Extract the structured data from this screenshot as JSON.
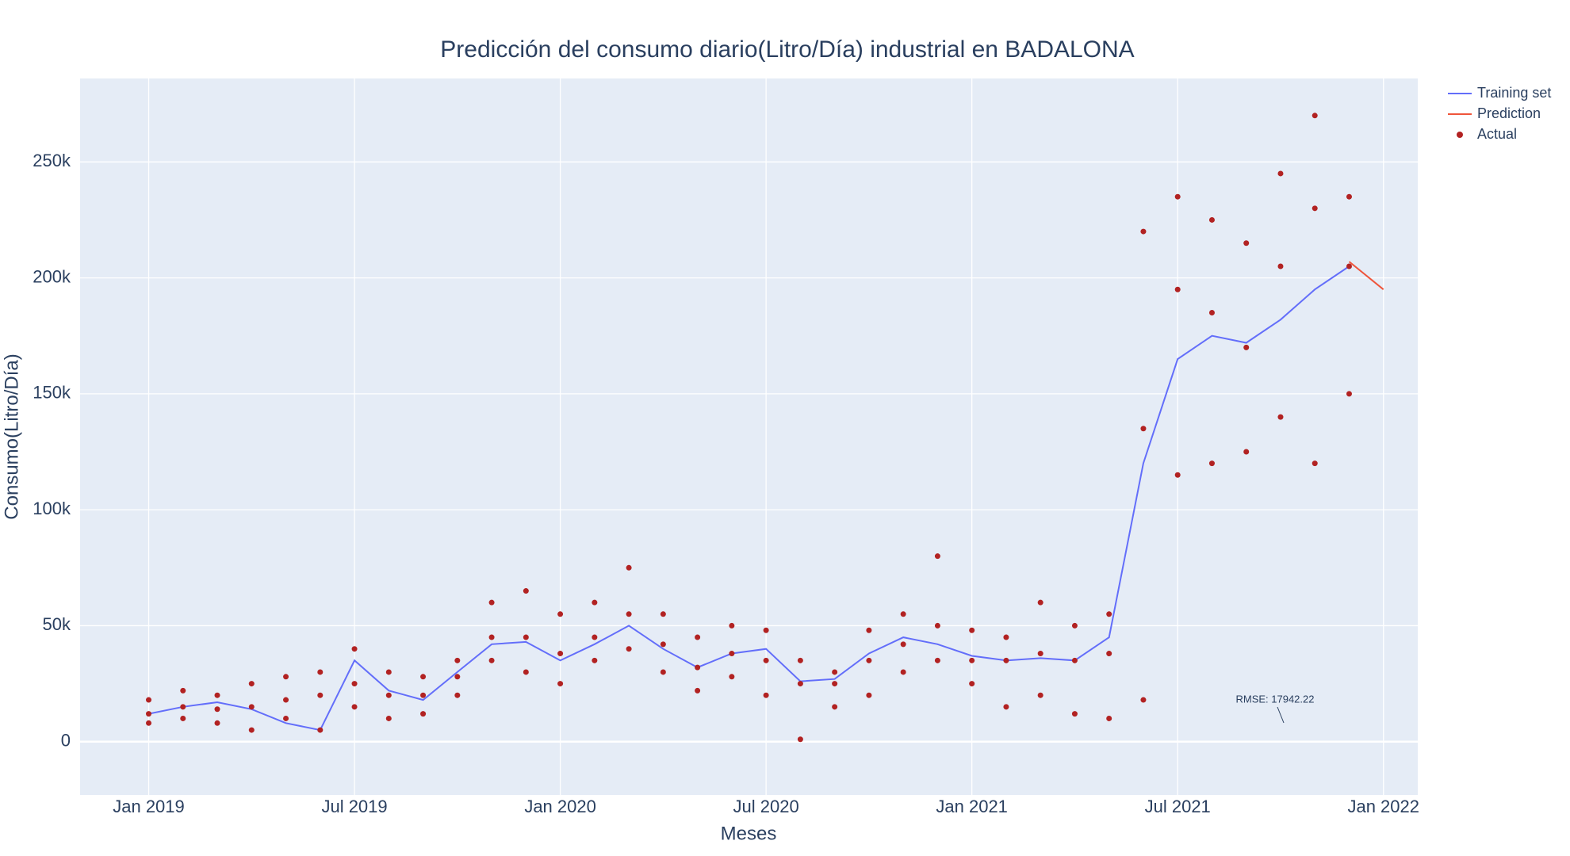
{
  "chart_data": {
    "type": "line",
    "title": "Predicción del consumo diario(Litro/Día) industrial en BADALONA",
    "x_label": "Meses",
    "y_label": "Consumo(Litro/Día)",
    "xlim": [
      "2018-11",
      "2022-02"
    ],
    "xticks": [
      {
        "value": "2019-01",
        "label": "Jan 2019"
      },
      {
        "value": "2019-07",
        "label": "Jul 2019"
      },
      {
        "value": "2020-01",
        "label": "Jan 2020"
      },
      {
        "value": "2020-07",
        "label": "Jul 2020"
      },
      {
        "value": "2021-01",
        "label": "Jan 2021"
      },
      {
        "value": "2021-07",
        "label": "Jul 2021"
      },
      {
        "value": "2022-01",
        "label": "Jan 2022"
      }
    ],
    "ylim": [
      -23000,
      286000
    ],
    "yticks": [
      0,
      {
        "value": 50000,
        "label": "50k"
      },
      {
        "value": 100000,
        "label": "100k"
      },
      {
        "value": 150000,
        "label": "150k"
      },
      {
        "value": 200000,
        "label": "200k"
      },
      {
        "value": 250000,
        "label": "250k"
      }
    ],
    "grid": true,
    "legend": "outside-top-right",
    "annotation": "RMSE: 17942.22",
    "series": [
      {
        "name": "Training set",
        "type": "line",
        "color": "#636efa",
        "x": [
          "2019-01",
          "2019-02",
          "2019-03",
          "2019-04",
          "2019-05",
          "2019-06",
          "2019-07",
          "2019-08",
          "2019-09",
          "2019-10",
          "2019-11",
          "2019-12",
          "2020-01",
          "2020-02",
          "2020-03",
          "2020-04",
          "2020-05",
          "2020-06",
          "2020-07",
          "2020-08",
          "2020-09",
          "2020-10",
          "2020-11",
          "2020-12",
          "2021-01",
          "2021-02",
          "2021-03",
          "2021-04",
          "2021-05",
          "2021-06",
          "2021-07",
          "2021-08",
          "2021-09",
          "2021-10",
          "2021-11",
          "2021-12"
        ],
        "values": [
          12000,
          15000,
          17000,
          14000,
          8000,
          5000,
          35000,
          22000,
          18000,
          30000,
          42000,
          43000,
          35000,
          42000,
          50000,
          40000,
          32000,
          38000,
          40000,
          26000,
          27000,
          38000,
          45000,
          42000,
          37000,
          35000,
          36000,
          35000,
          45000,
          120000,
          165000,
          175000,
          172000,
          182000,
          195000,
          205000
        ]
      },
      {
        "name": "Prediction",
        "type": "line",
        "color": "#ef553b",
        "x": [
          "2021-12",
          "2022-01"
        ],
        "values": [
          207000,
          195000
        ]
      },
      {
        "name": "Actual",
        "type": "scatter",
        "color": "#b22222",
        "x": [
          "2019-01",
          "2019-01",
          "2019-01",
          "2019-02",
          "2019-02",
          "2019-02",
          "2019-03",
          "2019-03",
          "2019-03",
          "2019-04",
          "2019-04",
          "2019-04",
          "2019-05",
          "2019-05",
          "2019-05",
          "2019-06",
          "2019-06",
          "2019-06",
          "2019-07",
          "2019-07",
          "2019-07",
          "2019-08",
          "2019-08",
          "2019-08",
          "2019-09",
          "2019-09",
          "2019-09",
          "2019-10",
          "2019-10",
          "2019-10",
          "2019-11",
          "2019-11",
          "2019-11",
          "2019-12",
          "2019-12",
          "2019-12",
          "2020-01",
          "2020-01",
          "2020-01",
          "2020-02",
          "2020-02",
          "2020-02",
          "2020-03",
          "2020-03",
          "2020-03",
          "2020-04",
          "2020-04",
          "2020-04",
          "2020-05",
          "2020-05",
          "2020-05",
          "2020-06",
          "2020-06",
          "2020-06",
          "2020-07",
          "2020-07",
          "2020-07",
          "2020-08",
          "2020-08",
          "2020-08",
          "2020-09",
          "2020-09",
          "2020-09",
          "2020-10",
          "2020-10",
          "2020-10",
          "2020-11",
          "2020-11",
          "2020-11",
          "2020-12",
          "2020-12",
          "2020-12",
          "2021-01",
          "2021-01",
          "2021-01",
          "2021-02",
          "2021-02",
          "2021-02",
          "2021-03",
          "2021-03",
          "2021-03",
          "2021-04",
          "2021-04",
          "2021-04",
          "2021-05",
          "2021-05",
          "2021-05",
          "2021-06",
          "2021-06",
          "2021-06",
          "2021-07",
          "2021-07",
          "2021-07",
          "2021-08",
          "2021-08",
          "2021-08",
          "2021-09",
          "2021-09",
          "2021-09",
          "2021-10",
          "2021-10",
          "2021-10",
          "2021-11",
          "2021-11",
          "2021-11",
          "2021-12",
          "2021-12",
          "2021-12"
        ],
        "values": [
          8000,
          18000,
          12000,
          22000,
          10000,
          15000,
          20000,
          8000,
          14000,
          25000,
          5000,
          15000,
          28000,
          10000,
          18000,
          30000,
          5000,
          20000,
          40000,
          15000,
          25000,
          30000,
          10000,
          20000,
          28000,
          12000,
          20000,
          35000,
          20000,
          28000,
          60000,
          35000,
          45000,
          65000,
          30000,
          45000,
          55000,
          25000,
          38000,
          60000,
          35000,
          45000,
          75000,
          40000,
          55000,
          55000,
          30000,
          42000,
          45000,
          22000,
          32000,
          50000,
          28000,
          38000,
          48000,
          20000,
          35000,
          35000,
          1000,
          25000,
          30000,
          15000,
          25000,
          48000,
          20000,
          35000,
          55000,
          30000,
          42000,
          80000,
          35000,
          50000,
          48000,
          25000,
          35000,
          45000,
          15000,
          35000,
          60000,
          20000,
          38000,
          50000,
          12000,
          35000,
          55000,
          10000,
          38000,
          220000,
          135000,
          18000,
          235000,
          195000,
          115000,
          225000,
          185000,
          120000,
          215000,
          170000,
          125000,
          245000,
          140000,
          205000,
          270000,
          230000,
          120000,
          235000,
          150000,
          205000
        ]
      }
    ]
  }
}
